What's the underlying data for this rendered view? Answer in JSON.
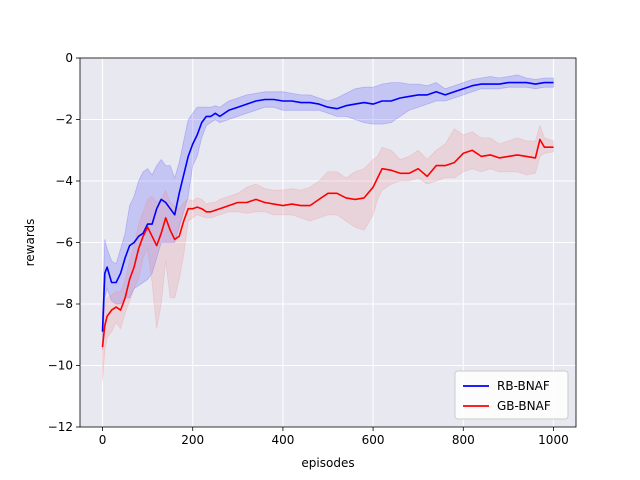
{
  "chart_data": {
    "type": "line",
    "xlabel": "episodes",
    "ylabel": "rewards",
    "xlim": [
      -50,
      1050
    ],
    "ylim": [
      -12,
      0
    ],
    "xticks": [
      0,
      200,
      400,
      600,
      800,
      1000
    ],
    "yticks": [
      -12,
      -10,
      -8,
      -6,
      -4,
      -2,
      0
    ],
    "xtick_labels": [
      "0",
      "200",
      "400",
      "600",
      "800",
      "1000"
    ],
    "ytick_labels": [
      "−12",
      "−10",
      "−8",
      "−6",
      "−4",
      "−2",
      "0"
    ],
    "grid": true,
    "background": "#e8e8f1",
    "legend_position": "lower-right",
    "series": [
      {
        "name": "RB-BNAF",
        "color": "#0000ff",
        "band_color": "#3b3bff",
        "x": [
          0,
          5,
          10,
          20,
          30,
          40,
          50,
          60,
          70,
          80,
          90,
          100,
          110,
          120,
          130,
          140,
          150,
          160,
          170,
          180,
          190,
          200,
          210,
          220,
          230,
          240,
          250,
          260,
          280,
          300,
          320,
          340,
          360,
          380,
          400,
          420,
          440,
          460,
          480,
          500,
          520,
          540,
          560,
          580,
          600,
          620,
          640,
          660,
          680,
          700,
          720,
          740,
          760,
          780,
          800,
          820,
          840,
          860,
          880,
          900,
          920,
          940,
          960,
          980,
          1000
        ],
        "values": [
          -8.9,
          -7.0,
          -6.8,
          -7.3,
          -7.3,
          -7.0,
          -6.5,
          -6.1,
          -6.0,
          -5.8,
          -5.7,
          -5.4,
          -5.4,
          -4.9,
          -4.6,
          -4.7,
          -4.9,
          -5.1,
          -4.4,
          -3.8,
          -3.2,
          -2.8,
          -2.5,
          -2.1,
          -1.9,
          -1.9,
          -1.8,
          -1.9,
          -1.7,
          -1.6,
          -1.5,
          -1.4,
          -1.35,
          -1.35,
          -1.4,
          -1.4,
          -1.45,
          -1.45,
          -1.5,
          -1.6,
          -1.65,
          -1.55,
          -1.5,
          -1.45,
          -1.5,
          -1.4,
          -1.4,
          -1.3,
          -1.25,
          -1.2,
          -1.2,
          -1.1,
          -1.2,
          -1.1,
          -1.0,
          -0.9,
          -0.85,
          -0.85,
          -0.85,
          -0.8,
          -0.8,
          -0.8,
          -0.85,
          -0.8,
          -0.8
        ],
        "lower": [
          -9.5,
          -7.8,
          -7.5,
          -7.9,
          -8.0,
          -8.0,
          -7.8,
          -7.8,
          -7.5,
          -7.4,
          -7.3,
          -7.2,
          -7.0,
          -6.5,
          -6.0,
          -6.0,
          -6.0,
          -6.0,
          -5.5,
          -5.0,
          -4.5,
          -3.5,
          -3.2,
          -2.6,
          -2.2,
          -2.1,
          -2.0,
          -2.1,
          -2.0,
          -1.9,
          -1.8,
          -1.7,
          -1.6,
          -1.6,
          -1.7,
          -1.7,
          -1.7,
          -1.7,
          -1.7,
          -1.8,
          -1.9,
          -1.9,
          -2.0,
          -2.1,
          -2.15,
          -2.15,
          -2.1,
          -1.9,
          -1.7,
          -1.6,
          -1.5,
          -1.4,
          -1.4,
          -1.3,
          -1.2,
          -1.1,
          -1.0,
          -1.0,
          -1.0,
          -0.95,
          -0.95,
          -0.95,
          -1.0,
          -0.95,
          -0.95
        ],
        "upper": [
          -8.3,
          -5.9,
          -6.2,
          -6.6,
          -6.7,
          -6.2,
          -5.7,
          -4.8,
          -4.5,
          -4.0,
          -3.7,
          -3.6,
          -3.8,
          -3.5,
          -3.3,
          -3.5,
          -3.5,
          -3.9,
          -3.4,
          -2.7,
          -2.0,
          -1.8,
          -1.6,
          -1.6,
          -1.6,
          -1.6,
          -1.55,
          -1.6,
          -1.4,
          -1.3,
          -1.2,
          -1.15,
          -1.1,
          -1.1,
          -1.1,
          -1.15,
          -1.2,
          -1.2,
          -1.3,
          -1.4,
          -1.3,
          -1.15,
          -1.0,
          -0.95,
          -0.95,
          -0.85,
          -0.8,
          -0.8,
          -0.85,
          -0.85,
          -0.9,
          -0.8,
          -1.0,
          -0.9,
          -0.8,
          -0.7,
          -0.65,
          -0.6,
          -0.65,
          -0.6,
          -0.55,
          -0.65,
          -0.7,
          -0.65,
          -0.65
        ]
      },
      {
        "name": "GB-BNAF",
        "color": "#ff0000",
        "band_color": "#f08080",
        "x": [
          0,
          5,
          10,
          20,
          30,
          40,
          50,
          60,
          70,
          80,
          90,
          100,
          110,
          120,
          130,
          140,
          150,
          160,
          170,
          180,
          190,
          200,
          210,
          220,
          230,
          240,
          250,
          260,
          280,
          300,
          320,
          340,
          360,
          380,
          400,
          420,
          440,
          460,
          480,
          500,
          520,
          540,
          560,
          580,
          600,
          610,
          620,
          640,
          660,
          680,
          700,
          720,
          740,
          760,
          780,
          800,
          820,
          840,
          860,
          880,
          900,
          920,
          940,
          960,
          970,
          980,
          1000
        ],
        "values": [
          -9.4,
          -8.7,
          -8.4,
          -8.2,
          -8.1,
          -8.2,
          -7.8,
          -7.2,
          -6.8,
          -6.2,
          -5.8,
          -5.5,
          -5.8,
          -6.1,
          -5.7,
          -5.2,
          -5.6,
          -5.9,
          -5.8,
          -5.3,
          -4.9,
          -4.9,
          -4.85,
          -4.9,
          -5.0,
          -5.0,
          -4.95,
          -4.9,
          -4.8,
          -4.7,
          -4.7,
          -4.6,
          -4.7,
          -4.75,
          -4.8,
          -4.75,
          -4.8,
          -4.8,
          -4.6,
          -4.4,
          -4.4,
          -4.55,
          -4.6,
          -4.55,
          -4.2,
          -3.9,
          -3.6,
          -3.65,
          -3.75,
          -3.75,
          -3.6,
          -3.85,
          -3.5,
          -3.5,
          -3.4,
          -3.1,
          -3.0,
          -3.2,
          -3.15,
          -3.25,
          -3.2,
          -3.15,
          -3.2,
          -3.25,
          -2.65,
          -2.9,
          -2.9
        ],
        "lower": [
          -10.5,
          -9.5,
          -9.1,
          -8.9,
          -8.6,
          -8.8,
          -8.3,
          -7.9,
          -7.5,
          -7.2,
          -6.5,
          -6.2,
          -7.3,
          -8.8,
          -8.0,
          -6.6,
          -7.8,
          -7.8,
          -7.2,
          -6.4,
          -5.3,
          -5.2,
          -5.1,
          -5.15,
          -5.2,
          -5.2,
          -5.15,
          -5.1,
          -5.0,
          -5.0,
          -5.05,
          -5.0,
          -5.0,
          -5.1,
          -5.1,
          -5.1,
          -5.2,
          -5.3,
          -5.2,
          -5.1,
          -5.1,
          -5.3,
          -5.5,
          -5.6,
          -5.1,
          -4.6,
          -4.3,
          -4.1,
          -4.0,
          -4.0,
          -3.9,
          -4.1,
          -4.0,
          -3.9,
          -3.9,
          -3.7,
          -3.6,
          -3.7,
          -3.6,
          -3.7,
          -3.7,
          -3.7,
          -3.8,
          -3.75,
          -3.2,
          -3.1,
          -3.05
        ],
        "upper": [
          -8.9,
          -8.1,
          -7.8,
          -7.7,
          -7.6,
          -7.6,
          -7.2,
          -6.6,
          -6.1,
          -5.4,
          -5.0,
          -4.6,
          -4.5,
          -4.7,
          -4.6,
          -4.3,
          -4.7,
          -4.8,
          -4.9,
          -4.7,
          -4.6,
          -4.65,
          -4.55,
          -4.6,
          -4.75,
          -4.7,
          -4.7,
          -4.6,
          -4.5,
          -4.4,
          -4.2,
          -4.1,
          -4.25,
          -4.3,
          -4.3,
          -4.25,
          -4.3,
          -4.2,
          -4.0,
          -3.7,
          -3.7,
          -3.9,
          -3.7,
          -3.6,
          -3.3,
          -3.2,
          -2.9,
          -3.0,
          -3.3,
          -3.2,
          -3.0,
          -3.3,
          -3.0,
          -2.8,
          -2.3,
          -2.5,
          -2.4,
          -2.6,
          -2.6,
          -2.8,
          -2.7,
          -2.6,
          -2.7,
          -2.7,
          -2.2,
          -2.6,
          -2.7
        ]
      }
    ]
  }
}
